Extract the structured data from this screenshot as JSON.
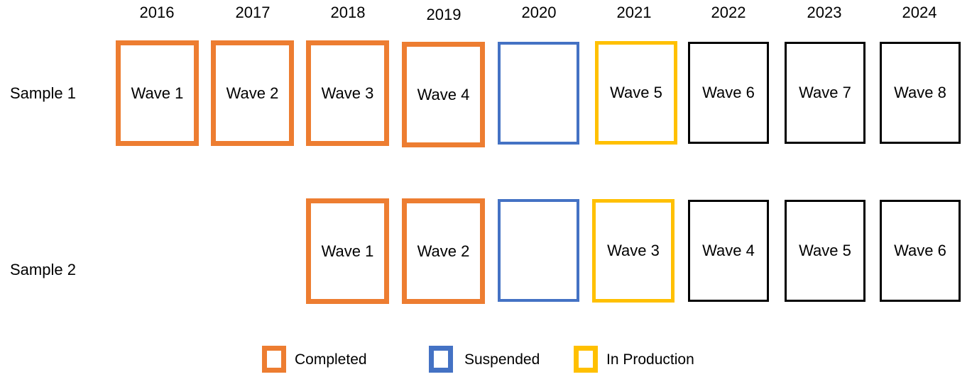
{
  "years": [
    "2016",
    "2017",
    "2018",
    "2019",
    "2020",
    "2021",
    "2022",
    "2023",
    "2024"
  ],
  "rows": [
    {
      "label": "Sample 1",
      "cells": [
        {
          "year": "2016",
          "status": "completed",
          "text": "Wave 1"
        },
        {
          "year": "2017",
          "status": "completed",
          "text": "Wave 2"
        },
        {
          "year": "2018",
          "status": "completed",
          "text": "Wave 3"
        },
        {
          "year": "2019",
          "status": "completed",
          "text": "Wave 4"
        },
        {
          "year": "2020",
          "status": "suspended",
          "text": ""
        },
        {
          "year": "2021",
          "status": "production",
          "text": "Wave 5"
        },
        {
          "year": "2022",
          "status": "planned",
          "text": "Wave 6"
        },
        {
          "year": "2023",
          "status": "planned",
          "text": "Wave 7"
        },
        {
          "year": "2024",
          "status": "planned",
          "text": "Wave 8"
        }
      ]
    },
    {
      "label": "Sample 2",
      "cells": [
        {
          "year": "2018",
          "status": "completed",
          "text": "Wave 1"
        },
        {
          "year": "2019",
          "status": "completed",
          "text": "Wave 2"
        },
        {
          "year": "2020",
          "status": "suspended",
          "text": ""
        },
        {
          "year": "2021",
          "status": "production",
          "text": "Wave 3"
        },
        {
          "year": "2022",
          "status": "planned",
          "text": "Wave 4"
        },
        {
          "year": "2023",
          "status": "planned",
          "text": "Wave 5"
        },
        {
          "year": "2024",
          "status": "planned",
          "text": "Wave 6"
        }
      ]
    }
  ],
  "legend": [
    {
      "status": "completed",
      "label": "Completed"
    },
    {
      "status": "suspended",
      "label": "Suspended"
    },
    {
      "status": "production",
      "label": "In Production"
    }
  ],
  "colors": {
    "completed": "#ED7D31",
    "suspended": "#4472C4",
    "production": "#FFC000",
    "planned": "#000000"
  }
}
